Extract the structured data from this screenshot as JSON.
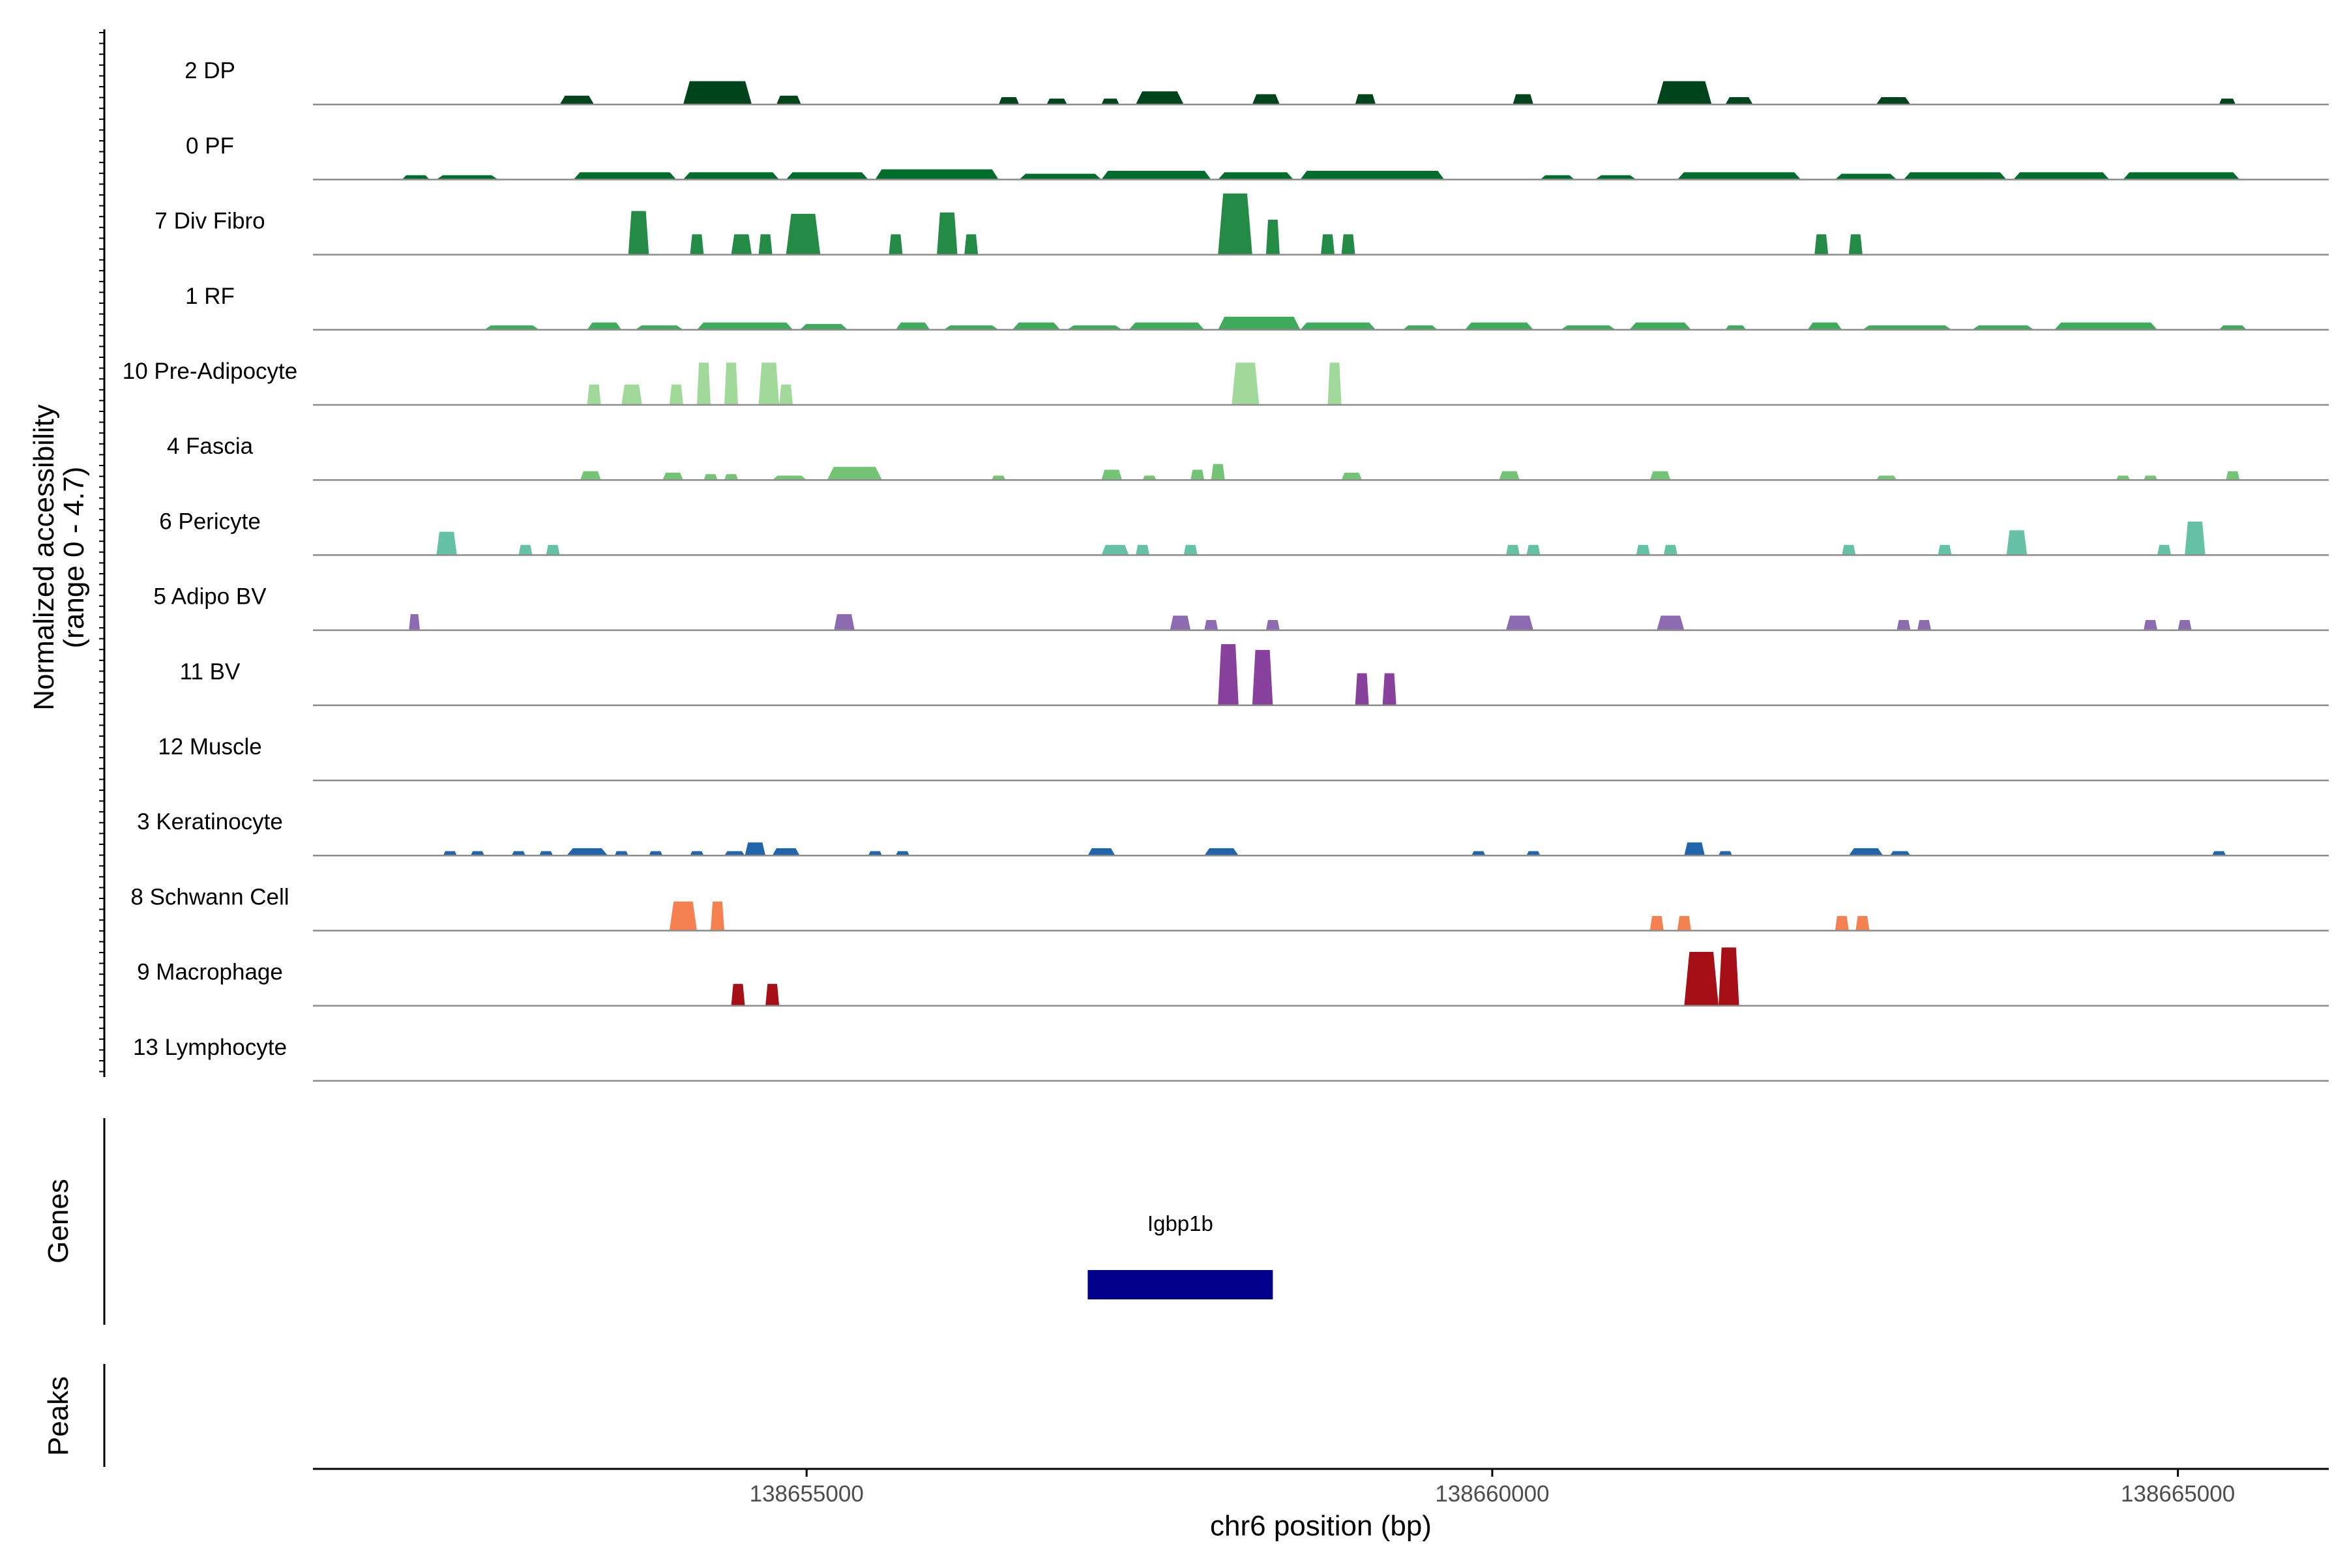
{
  "chart_data": {
    "type": "area",
    "title": "",
    "y_axis_title": [
      "Normalized accessibility",
      "(range 0 - 4.7)"
    ],
    "y_range": [
      0,
      4.7
    ],
    "x_axis_title": "chr6 position (bp)",
    "x_range": [
      138651400,
      138666100
    ],
    "x_ticks": [
      {
        "value": 138655000,
        "label": "138655000"
      },
      {
        "value": 138660000,
        "label": "138660000"
      },
      {
        "value": 138665000,
        "label": "138665000"
      }
    ],
    "series": [
      {
        "name": "2 DP",
        "color": "#00441b",
        "peaks": [
          [
            138653200,
            138653450,
            0.6
          ],
          [
            138654100,
            138654600,
            1.6
          ],
          [
            138654780,
            138654960,
            0.6
          ],
          [
            138656400,
            138656550,
            0.5
          ],
          [
            138656750,
            138656900,
            0.4
          ],
          [
            138657150,
            138657280,
            0.4
          ],
          [
            138657400,
            138657750,
            0.9
          ],
          [
            138658250,
            138658450,
            0.7
          ],
          [
            138659000,
            138659150,
            0.7
          ],
          [
            138660150,
            138660300,
            0.7
          ],
          [
            138661200,
            138661600,
            1.6
          ],
          [
            138661700,
            138661900,
            0.5
          ],
          [
            138662800,
            138663050,
            0.5
          ],
          [
            138665300,
            138665420,
            0.4
          ]
        ]
      },
      {
        "name": "0 PF",
        "color": "#006d2c",
        "peaks": [
          [
            138652050,
            138652250,
            0.3
          ],
          [
            138652300,
            138652750,
            0.3
          ],
          [
            138653300,
            138654050,
            0.5
          ],
          [
            138654100,
            138654800,
            0.5
          ],
          [
            138654850,
            138655450,
            0.5
          ],
          [
            138655500,
            138656400,
            0.7
          ],
          [
            138656550,
            138657150,
            0.4
          ],
          [
            138657150,
            138657950,
            0.6
          ],
          [
            138658000,
            138658550,
            0.5
          ],
          [
            138658600,
            138659650,
            0.6
          ],
          [
            138660350,
            138660600,
            0.3
          ],
          [
            138660750,
            138661050,
            0.3
          ],
          [
            138661350,
            138662250,
            0.5
          ],
          [
            138662500,
            138662950,
            0.4
          ],
          [
            138663000,
            138663750,
            0.5
          ],
          [
            138663800,
            138664500,
            0.5
          ],
          [
            138664600,
            138665450,
            0.5
          ]
        ]
      },
      {
        "name": "7 Div Fibro",
        "color": "#238b45",
        "peaks": [
          [
            138653700,
            138653850,
            3.0
          ],
          [
            138654150,
            138654250,
            1.4
          ],
          [
            138654450,
            138654600,
            1.4
          ],
          [
            138654650,
            138654750,
            1.4
          ],
          [
            138654850,
            138655100,
            2.8
          ],
          [
            138655600,
            138655700,
            1.4
          ],
          [
            138655950,
            138656100,
            2.9
          ],
          [
            138656150,
            138656250,
            1.4
          ],
          [
            138658000,
            138658250,
            4.2
          ],
          [
            138658350,
            138658450,
            2.4
          ],
          [
            138658750,
            138658850,
            1.4
          ],
          [
            138658900,
            138659000,
            1.4
          ],
          [
            138662350,
            138662450,
            1.4
          ],
          [
            138662600,
            138662700,
            1.4
          ]
        ]
      },
      {
        "name": "1 RF",
        "color": "#41ab5d",
        "peaks": [
          [
            138652650,
            138653050,
            0.3
          ],
          [
            138653400,
            138653650,
            0.5
          ],
          [
            138653750,
            138654100,
            0.3
          ],
          [
            138654200,
            138654900,
            0.5
          ],
          [
            138654950,
            138655300,
            0.4
          ],
          [
            138655650,
            138655900,
            0.5
          ],
          [
            138656000,
            138656400,
            0.3
          ],
          [
            138656500,
            138656850,
            0.5
          ],
          [
            138656900,
            138657300,
            0.3
          ],
          [
            138657350,
            138657900,
            0.5
          ],
          [
            138658000,
            138658600,
            0.9
          ],
          [
            138658600,
            138659150,
            0.5
          ],
          [
            138659350,
            138659600,
            0.3
          ],
          [
            138659800,
            138660300,
            0.5
          ],
          [
            138660500,
            138660900,
            0.3
          ],
          [
            138661000,
            138661450,
            0.5
          ],
          [
            138661700,
            138661850,
            0.3
          ],
          [
            138662300,
            138662550,
            0.5
          ],
          [
            138662700,
            138663350,
            0.3
          ],
          [
            138663500,
            138663950,
            0.3
          ],
          [
            138664100,
            138664850,
            0.5
          ],
          [
            138665300,
            138665500,
            0.3
          ]
        ]
      },
      {
        "name": "10 Pre-Adipocyte",
        "color": "#a1d99b",
        "peaks": [
          [
            138653400,
            138653500,
            1.4
          ],
          [
            138653650,
            138653800,
            1.4
          ],
          [
            138654000,
            138654100,
            1.4
          ],
          [
            138654200,
            138654300,
            2.9
          ],
          [
            138654400,
            138654500,
            2.9
          ],
          [
            138654650,
            138654800,
            2.9
          ],
          [
            138654800,
            138654900,
            1.4
          ],
          [
            138658100,
            138658300,
            2.9
          ],
          [
            138658800,
            138658900,
            2.9
          ]
        ]
      },
      {
        "name": "4 Fascia",
        "color": "#74c476",
        "peaks": [
          [
            138653350,
            138653500,
            0.6
          ],
          [
            138653950,
            138654100,
            0.5
          ],
          [
            138654250,
            138654350,
            0.4
          ],
          [
            138654400,
            138654500,
            0.4
          ],
          [
            138654750,
            138655000,
            0.3
          ],
          [
            138655150,
            138655550,
            0.9
          ],
          [
            138656350,
            138656450,
            0.3
          ],
          [
            138657150,
            138657300,
            0.7
          ],
          [
            138657450,
            138657550,
            0.3
          ],
          [
            138657800,
            138657900,
            0.7
          ],
          [
            138657950,
            138658050,
            1.1
          ],
          [
            138658900,
            138659050,
            0.5
          ],
          [
            138660050,
            138660200,
            0.6
          ],
          [
            138661150,
            138661300,
            0.6
          ],
          [
            138662800,
            138662950,
            0.3
          ],
          [
            138664550,
            138664650,
            0.3
          ],
          [
            138664750,
            138664850,
            0.3
          ],
          [
            138665350,
            138665450,
            0.6
          ]
        ]
      },
      {
        "name": "6 Pericyte",
        "color": "#66c2a4",
        "peaks": [
          [
            138652300,
            138652450,
            1.6
          ],
          [
            138652900,
            138653000,
            0.7
          ],
          [
            138653100,
            138653200,
            0.7
          ],
          [
            138657150,
            138657350,
            0.7
          ],
          [
            138657400,
            138657500,
            0.7
          ],
          [
            138657750,
            138657850,
            0.7
          ],
          [
            138660100,
            138660200,
            0.7
          ],
          [
            138660250,
            138660350,
            0.7
          ],
          [
            138661050,
            138661150,
            0.7
          ],
          [
            138661250,
            138661350,
            0.7
          ],
          [
            138662550,
            138662650,
            0.7
          ],
          [
            138663250,
            138663350,
            0.7
          ],
          [
            138663750,
            138663900,
            1.7
          ],
          [
            138664850,
            138664950,
            0.7
          ],
          [
            138665050,
            138665200,
            2.3
          ]
        ]
      },
      {
        "name": "5 Adipo BV",
        "color": "#8c6bb1",
        "peaks": [
          [
            138652100,
            138652180,
            1.1
          ],
          [
            138655200,
            138655350,
            1.1
          ],
          [
            138657650,
            138657800,
            1.0
          ],
          [
            138657900,
            138658000,
            0.7
          ],
          [
            138658350,
            138658450,
            0.7
          ],
          [
            138660100,
            138660300,
            1.0
          ],
          [
            138661200,
            138661400,
            1.0
          ],
          [
            138662950,
            138663050,
            0.7
          ],
          [
            138663100,
            138663200,
            0.7
          ],
          [
            138664750,
            138664850,
            0.7
          ],
          [
            138665000,
            138665100,
            0.7
          ]
        ]
      },
      {
        "name": "11 BV",
        "color": "#88419d",
        "peaks": [
          [
            138658000,
            138658150,
            4.2
          ],
          [
            138658250,
            138658400,
            3.8
          ],
          [
            138659000,
            138659100,
            2.2
          ],
          [
            138659200,
            138659300,
            2.2
          ]
        ]
      },
      {
        "name": "12 Muscle",
        "color": "#6a51a3",
        "peaks": []
      },
      {
        "name": "3 Keratinocyte",
        "color": "#2166ac",
        "peaks": [
          [
            138652350,
            138652450,
            0.3
          ],
          [
            138652550,
            138652650,
            0.3
          ],
          [
            138652850,
            138652950,
            0.3
          ],
          [
            138653050,
            138653150,
            0.3
          ],
          [
            138653250,
            138653550,
            0.5
          ],
          [
            138653600,
            138653700,
            0.3
          ],
          [
            138653850,
            138653950,
            0.3
          ],
          [
            138654150,
            138654250,
            0.3
          ],
          [
            138654400,
            138654550,
            0.3
          ],
          [
            138654550,
            138654700,
            0.9
          ],
          [
            138654750,
            138654950,
            0.5
          ],
          [
            138655450,
            138655550,
            0.3
          ],
          [
            138655650,
            138655750,
            0.3
          ],
          [
            138657050,
            138657250,
            0.5
          ],
          [
            138657900,
            138658150,
            0.5
          ],
          [
            138659850,
            138659950,
            0.3
          ],
          [
            138660250,
            138660350,
            0.3
          ],
          [
            138661400,
            138661550,
            0.9
          ],
          [
            138661650,
            138661750,
            0.3
          ],
          [
            138662600,
            138662850,
            0.5
          ],
          [
            138662900,
            138663050,
            0.3
          ],
          [
            138665250,
            138665350,
            0.3
          ]
        ]
      },
      {
        "name": "8 Schwann Cell",
        "color": "#f4814f",
        "peaks": [
          [
            138654000,
            138654200,
            2.0
          ],
          [
            138654300,
            138654400,
            2.0
          ],
          [
            138661150,
            138661250,
            1.0
          ],
          [
            138661350,
            138661450,
            1.0
          ],
          [
            138662500,
            138662600,
            1.0
          ],
          [
            138662650,
            138662750,
            1.0
          ]
        ]
      },
      {
        "name": "9 Macrophage",
        "color": "#a50f15",
        "peaks": [
          [
            138654450,
            138654550,
            1.5
          ],
          [
            138654700,
            138654800,
            1.5
          ],
          [
            138661400,
            138661650,
            3.7
          ],
          [
            138661650,
            138661800,
            4.0
          ]
        ]
      },
      {
        "name": "13 Lymphocyte",
        "color": "#49006a",
        "peaks": []
      }
    ],
    "genes_track_title": "Genes",
    "genes": [
      {
        "name": "Igbp1b",
        "start": 138657050,
        "end": 138658400,
        "color": "#00008b"
      }
    ],
    "peaks_track_title": "Peaks",
    "peaks_track": []
  }
}
